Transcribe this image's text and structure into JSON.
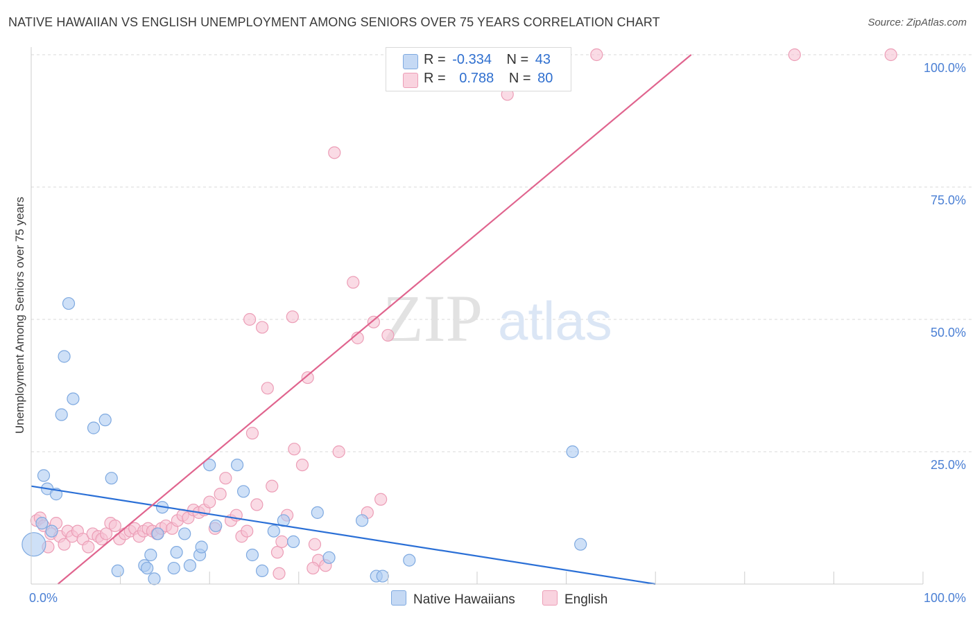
{
  "title": "NATIVE HAWAIIAN VS ENGLISH UNEMPLOYMENT AMONG SENIORS OVER 75 YEARS CORRELATION CHART",
  "source": "Source: ZipAtlas.com",
  "watermark": {
    "zip": "ZIP",
    "atlas": "atlas"
  },
  "colors": {
    "blue_fill": "#aecbf2",
    "blue_stroke": "#7ea9e0",
    "blue_line": "#2a6fd6",
    "pink_fill": "#f7c3d3",
    "pink_stroke": "#ec9db6",
    "pink_line": "#e0648e",
    "axis_text": "#4a7fd4",
    "grid": "#d8d8d8"
  },
  "legend": {
    "rows": [
      {
        "r_label": "R =",
        "r_value": "-0.334",
        "n_label": "N =",
        "n_value": "43"
      },
      {
        "r_label": "R =",
        "r_value": "0.788",
        "n_label": "N =",
        "n_value": "80"
      }
    ]
  },
  "bottom_legend": [
    "Native Hawaiians",
    "English"
  ],
  "chart_data": {
    "type": "scatter",
    "title": "NATIVE HAWAIIAN VS ENGLISH UNEMPLOYMENT AMONG SENIORS OVER 75 YEARS CORRELATION CHART",
    "xlabel": "",
    "ylabel": "Unemployment Among Seniors over 75 years",
    "xlim": [
      0,
      100
    ],
    "ylim": [
      0,
      100
    ],
    "x_tick_labels": [
      "0.0%",
      "100.0%"
    ],
    "y_ticks": [
      25,
      50,
      75,
      100
    ],
    "y_tick_labels": [
      "25.0%",
      "50.0%",
      "75.0%",
      "100.0%"
    ],
    "grid": true,
    "legend_position": "top-center",
    "series": [
      {
        "name": "Native Hawaiians",
        "r": -0.334,
        "n": 43,
        "trend": {
          "x": [
            0,
            70
          ],
          "y": [
            18.5,
            0
          ]
        },
        "points": [
          [
            0.3,
            7.5,
            "big"
          ],
          [
            1.2,
            11.5
          ],
          [
            1.4,
            20.5
          ],
          [
            1.8,
            18
          ],
          [
            2.3,
            10
          ],
          [
            2.8,
            17
          ],
          [
            3.4,
            32
          ],
          [
            3.7,
            43
          ],
          [
            4.2,
            53
          ],
          [
            4.7,
            35
          ],
          [
            7,
            29.5
          ],
          [
            8.3,
            31
          ],
          [
            9,
            20
          ],
          [
            9.7,
            2.5
          ],
          [
            12.7,
            3.5
          ],
          [
            13,
            3
          ],
          [
            13.4,
            5.5
          ],
          [
            13.8,
            1
          ],
          [
            14.2,
            9.5
          ],
          [
            14.7,
            14.5
          ],
          [
            16,
            3
          ],
          [
            16.3,
            6
          ],
          [
            17.2,
            9.5
          ],
          [
            17.8,
            3.5
          ],
          [
            18.9,
            5.5
          ],
          [
            19.1,
            7
          ],
          [
            20,
            22.5
          ],
          [
            20.7,
            11
          ],
          [
            23.1,
            22.5
          ],
          [
            23.8,
            17.5
          ],
          [
            24.8,
            5.5
          ],
          [
            25.9,
            2.5
          ],
          [
            27.2,
            10
          ],
          [
            28.3,
            12
          ],
          [
            29.4,
            8
          ],
          [
            32.1,
            13.5
          ],
          [
            33.4,
            5
          ],
          [
            37.1,
            12
          ],
          [
            38.7,
            1.5
          ],
          [
            39.4,
            1.5
          ],
          [
            42.4,
            4.5
          ],
          [
            60.7,
            25
          ],
          [
            61.6,
            7.5
          ]
        ]
      },
      {
        "name": "English",
        "r": 0.788,
        "n": 80,
        "trend": {
          "x": [
            3,
            74
          ],
          "y": [
            0,
            100
          ]
        },
        "points": [
          [
            0.6,
            12
          ],
          [
            1,
            12.5
          ],
          [
            1.4,
            11
          ],
          [
            1.9,
            7
          ],
          [
            2.2,
            9.5
          ],
          [
            2.8,
            11.5
          ],
          [
            3.2,
            9
          ],
          [
            3.7,
            7.5
          ],
          [
            4.1,
            10
          ],
          [
            4.6,
            9
          ],
          [
            5.2,
            10
          ],
          [
            5.8,
            8.5
          ],
          [
            6.4,
            7
          ],
          [
            6.9,
            9.5
          ],
          [
            7.5,
            9
          ],
          [
            7.9,
            8.5
          ],
          [
            8.4,
            9.5
          ],
          [
            8.9,
            11.5
          ],
          [
            9.4,
            11
          ],
          [
            9.9,
            8.5
          ],
          [
            10.5,
            9.5
          ],
          [
            11.1,
            10
          ],
          [
            11.6,
            10.5
          ],
          [
            12.1,
            9
          ],
          [
            12.6,
            10
          ],
          [
            13.1,
            10.5
          ],
          [
            13.6,
            10
          ],
          [
            14.1,
            9.5
          ],
          [
            14.6,
            10.5
          ],
          [
            15.1,
            11
          ],
          [
            15.8,
            10.5
          ],
          [
            16.4,
            12
          ],
          [
            17,
            13
          ],
          [
            17.6,
            12.5
          ],
          [
            18.2,
            14
          ],
          [
            18.8,
            13.5
          ],
          [
            19.4,
            14
          ],
          [
            20,
            15.5
          ],
          [
            20.6,
            10.5
          ],
          [
            21.2,
            17
          ],
          [
            21.8,
            20
          ],
          [
            22.4,
            12
          ],
          [
            23,
            13
          ],
          [
            23.6,
            9
          ],
          [
            24.2,
            10
          ],
          [
            24.8,
            28.5
          ],
          [
            25.3,
            15
          ],
          [
            24.5,
            50
          ],
          [
            25.9,
            48.5
          ],
          [
            26.5,
            37
          ],
          [
            27,
            18.5
          ],
          [
            27.6,
            6
          ],
          [
            28.1,
            8
          ],
          [
            28.7,
            13
          ],
          [
            29.3,
            50.5
          ],
          [
            29.5,
            25.5
          ],
          [
            30.4,
            22.5
          ],
          [
            31,
            39
          ],
          [
            31.8,
            7.5
          ],
          [
            32.2,
            4.5
          ],
          [
            31.6,
            3
          ],
          [
            34,
            81.5
          ],
          [
            34.5,
            25
          ],
          [
            36.1,
            57
          ],
          [
            36.6,
            46.5
          ],
          [
            37.7,
            13.5
          ],
          [
            38.4,
            49.5
          ],
          [
            39.2,
            16
          ],
          [
            40,
            47
          ],
          [
            43.1,
            100
          ],
          [
            44.8,
            100
          ],
          [
            47.6,
            100
          ],
          [
            51.3,
            100
          ],
          [
            53.4,
            92.5
          ],
          [
            57.1,
            100
          ],
          [
            63.4,
            100
          ],
          [
            85.6,
            100
          ],
          [
            96.4,
            100
          ],
          [
            27.8,
            2
          ],
          [
            33,
            3.5
          ]
        ]
      }
    ]
  }
}
